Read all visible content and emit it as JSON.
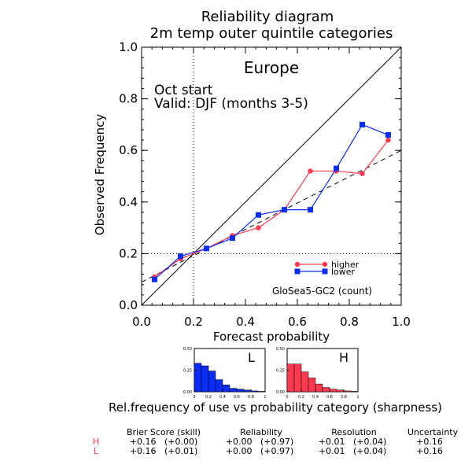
{
  "title": {
    "line1": "Reliability diagram",
    "line2": "2m temp outer quintile categories"
  },
  "annotations": {
    "region": "Europe",
    "start": "Oct start",
    "valid": "Valid: DJF (months 3-5)",
    "model": "GloSea5-GC2 (count)"
  },
  "colors": {
    "higher": "#ff3a4e",
    "lower": "#0a2cf5",
    "axis": "#000000"
  },
  "chart_data": [
    {
      "type": "line",
      "xlabel": "Forecast probability",
      "ylabel": "Observed Frequency",
      "xlim": [
        0,
        1
      ],
      "ylim": [
        0,
        1
      ],
      "xticks": [
        "0.0",
        "0.2",
        "0.4",
        "0.6",
        "0.8",
        "1.0"
      ],
      "yticks": [
        "0.0",
        "0.2",
        "0.4",
        "0.6",
        "0.8",
        "1.0"
      ],
      "reference_lines": {
        "diagonal": [
          [
            0,
            0
          ],
          [
            1,
            1
          ]
        ],
        "climatology_x": 0.2,
        "climatology_y": 0.2,
        "regression_dashed": [
          [
            0,
            0.09
          ],
          [
            1,
            0.6
          ]
        ]
      },
      "legend": {
        "position": "bottom-right"
      },
      "series": [
        {
          "name": "higher",
          "marker": "circle",
          "x": [
            0.05,
            0.15,
            0.25,
            0.35,
            0.45,
            0.55,
            0.65,
            0.75,
            0.85,
            0.95
          ],
          "y": [
            0.11,
            0.18,
            0.22,
            0.27,
            0.3,
            0.37,
            0.52,
            0.52,
            0.51,
            0.64
          ]
        },
        {
          "name": "lower",
          "marker": "square",
          "x": [
            0.05,
            0.15,
            0.25,
            0.35,
            0.45,
            0.55,
            0.65,
            0.75,
            0.85,
            0.95
          ],
          "y": [
            0.1,
            0.19,
            0.22,
            0.26,
            0.35,
            0.37,
            0.37,
            0.53,
            0.7,
            0.66
          ]
        }
      ]
    },
    {
      "type": "bar",
      "label": "L",
      "categories": [
        "0.05",
        "0.15",
        "0.25",
        "0.35",
        "0.45",
        "0.55",
        "0.65",
        "0.75",
        "0.85",
        "0.95"
      ],
      "values": [
        0.33,
        0.3,
        0.24,
        0.14,
        0.08,
        0.04,
        0.03,
        0.02,
        0.01,
        0.005
      ],
      "ylim": [
        0,
        0.5
      ],
      "yticks": [
        "0.00",
        "0.25",
        "0.50"
      ],
      "xticks": [
        "0",
        "0.2",
        "0.4",
        "0.6",
        "0.8",
        "1"
      ]
    },
    {
      "type": "bar",
      "label": "H",
      "categories": [
        "0.05",
        "0.15",
        "0.25",
        "0.35",
        "0.45",
        "0.55",
        "0.65",
        "0.75",
        "0.85",
        "0.95"
      ],
      "values": [
        0.32,
        0.32,
        0.23,
        0.16,
        0.09,
        0.05,
        0.03,
        0.02,
        0.01,
        0.005
      ],
      "ylim": [
        0,
        0.5
      ],
      "yticks": [
        "0.00",
        "0.25",
        "0.50"
      ],
      "xticks": [
        "0",
        "0.2",
        "0.4",
        "0.6",
        "0.8",
        "1"
      ]
    }
  ],
  "sharpness_caption": "Rel.frequency of use vs probability category (sharpness)",
  "scores": {
    "headers": [
      "Brier Score (skill)",
      "Reliability",
      "Resolution",
      "Uncertainty"
    ],
    "rows": [
      {
        "label": "H",
        "values": [
          "+0.16   (+0.00)",
          "+0.00   (+0.97)",
          "+0.01   (+0.04)",
          "+0.16"
        ]
      },
      {
        "label": "L",
        "values": [
          "+0.16   (+0.01)",
          "+0.00   (+0.97)",
          "+0.01   (+0.04)",
          "+0.16"
        ]
      }
    ]
  }
}
